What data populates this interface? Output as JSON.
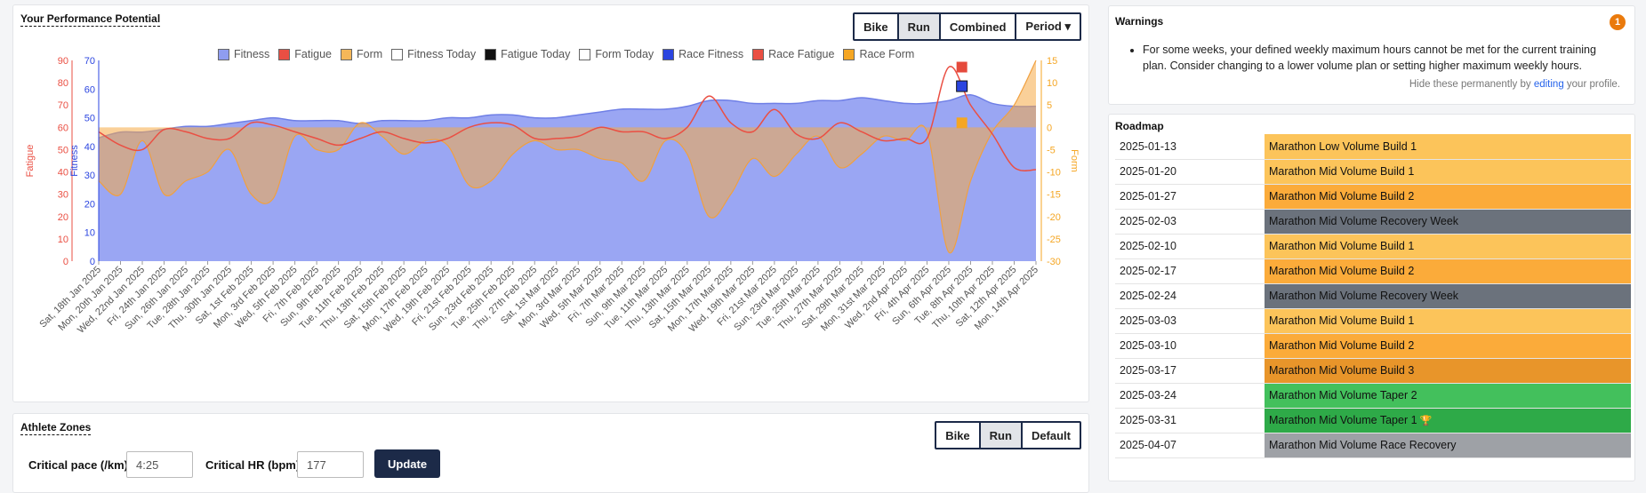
{
  "performance": {
    "title": "Your Performance Potential",
    "buttons": [
      {
        "label": "Bike",
        "active": false
      },
      {
        "label": "Run",
        "active": true
      },
      {
        "label": "Combined",
        "active": false
      },
      {
        "label": "Period ▾",
        "active": false
      }
    ],
    "legend": [
      {
        "label": "Fitness",
        "color": "#8f9df0"
      },
      {
        "label": "Fatigue",
        "color": "#ea4f43"
      },
      {
        "label": "Form",
        "color": "#f5b759"
      },
      {
        "label": "Fitness Today",
        "color": "#ffffff"
      },
      {
        "label": "Fatigue Today",
        "color": "#111111"
      },
      {
        "label": "Form Today",
        "color": "#ffffff"
      },
      {
        "label": "Race Fitness",
        "color": "#2b45e0"
      },
      {
        "label": "Race Fatigue",
        "color": "#ea4f43"
      },
      {
        "label": "Race Form",
        "color": "#f5a623"
      }
    ]
  },
  "chart_data": {
    "type": "area",
    "x": [
      "Sat, 18th Jan 2025",
      "Mon, 20th Jan 2025",
      "Wed, 22nd Jan 2025",
      "Fri, 24th Jan 2025",
      "Sun, 26th Jan 2025",
      "Tue, 28th Jan 2025",
      "Thu, 30th Jan 2025",
      "Sat, 1st Feb 2025",
      "Mon, 3rd Feb 2025",
      "Wed, 5th Feb 2025",
      "Fri, 7th Feb 2025",
      "Sun, 9th Feb 2025",
      "Tue, 11th Feb 2025",
      "Thu, 13th Feb 2025",
      "Sat, 15th Feb 2025",
      "Mon, 17th Feb 2025",
      "Wed, 19th Feb 2025",
      "Fri, 21st Feb 2025",
      "Sun, 23rd Feb 2025",
      "Tue, 25th Feb 2025",
      "Thu, 27th Feb 2025",
      "Sat, 1st Mar 2025",
      "Mon, 3rd Mar 2025",
      "Wed, 5th Mar 2025",
      "Fri, 7th Mar 2025",
      "Sun, 9th Mar 2025",
      "Tue, 11th Mar 2025",
      "Thu, 13th Mar 2025",
      "Sat, 15th Mar 2025",
      "Mon, 17th Mar 2025",
      "Wed, 19th Mar 2025",
      "Fri, 21st Mar 2025",
      "Sun, 23rd Mar 2025",
      "Tue, 25th Mar 2025",
      "Thu, 27th Mar 2025",
      "Sat, 29th Mar 2025",
      "Mon, 31st Mar 2025",
      "Wed, 2nd Apr 2025",
      "Fri, 4th Apr 2025",
      "Sun, 6th Apr 2025",
      "Tue, 8th Apr 2025",
      "Thu, 10th Apr 2025",
      "Sat, 12th Apr 2025",
      "Mon, 14th Apr 2025"
    ],
    "axes": {
      "fatigue": {
        "label": "Fatigue",
        "min": 0,
        "max": 90,
        "ticks": [
          0,
          10,
          20,
          30,
          40,
          50,
          60,
          70,
          80,
          90
        ],
        "color": "#ea4f43"
      },
      "fitness": {
        "label": "Fitness",
        "min": 0,
        "max": 70,
        "ticks": [
          0,
          10,
          20,
          30,
          40,
          50,
          60,
          70
        ],
        "color": "#2b45e0"
      },
      "form": {
        "label": "Form",
        "min": -30,
        "max": 15,
        "ticks": [
          15,
          10,
          5,
          0,
          -5,
          -10,
          -15,
          -20,
          -25,
          -30
        ],
        "color": "#f5a623"
      }
    },
    "series": [
      {
        "name": "Fitness",
        "axis": "fitness",
        "values": [
          43,
          45,
          45,
          46,
          47,
          47,
          48,
          49,
          50,
          49,
          49,
          49,
          48,
          49,
          49,
          49,
          50,
          50,
          51,
          51,
          50,
          50,
          51,
          52,
          53,
          53,
          53,
          54,
          56,
          56,
          55,
          55,
          55,
          56,
          56,
          57,
          56,
          55,
          55,
          56,
          58,
          55,
          54,
          54
        ]
      },
      {
        "name": "Fatigue",
        "axis": "fatigue",
        "values": [
          58,
          52,
          50,
          59,
          58,
          55,
          55,
          62,
          61,
          58,
          55,
          52,
          55,
          58,
          55,
          53,
          55,
          60,
          62,
          61,
          55,
          55,
          56,
          60,
          58,
          58,
          55,
          60,
          74,
          62,
          58,
          68,
          57,
          55,
          62,
          58,
          54,
          55,
          55,
          87,
          70,
          57,
          42,
          41
        ]
      },
      {
        "name": "Form",
        "axis": "form",
        "values": [
          -12,
          -15,
          -3,
          -15,
          -12,
          -10,
          -5,
          -15,
          -16,
          -2,
          -5,
          -5,
          1,
          -2,
          -6,
          -3,
          -4,
          -13,
          -12,
          -6,
          -3,
          -5,
          -5,
          -7,
          -8,
          -12,
          -3,
          -6,
          -20,
          -15,
          -7,
          -11,
          -6,
          -2,
          -9,
          -6,
          -2,
          -3,
          -1,
          -28,
          -12,
          -1,
          5,
          15
        ]
      },
      {
        "name": "Race Fitness",
        "axis": "fitness",
        "values": [
          {
            "x": "Mon, 7th Apr 2025",
            "y": 61
          }
        ]
      },
      {
        "name": "Race Fatigue",
        "axis": "fatigue",
        "values": [
          {
            "x": "Mon, 7th Apr 2025",
            "y": 87
          }
        ]
      },
      {
        "name": "Race Form",
        "axis": "form",
        "values": [
          {
            "x": "Mon, 7th Apr 2025",
            "y": 1
          }
        ]
      }
    ]
  },
  "zones": {
    "title": "Athlete Zones",
    "buttons": [
      {
        "label": "Bike",
        "active": false
      },
      {
        "label": "Run",
        "active": true
      },
      {
        "label": "Default",
        "active": false
      }
    ],
    "pace_label": "Critical pace (/km)",
    "pace_value": "4:25",
    "hr_label": "Critical HR (bpm)",
    "hr_value": "177",
    "update_label": "Update"
  },
  "warnings": {
    "title": "Warnings",
    "count": "1",
    "items": [
      "For some weeks, your defined weekly maximum hours cannot be met for the current training plan. Consider changing to a lower volume plan or setting higher maximum weekly hours."
    ],
    "hide_prefix": "Hide these permanently by ",
    "hide_link": "editing",
    "hide_suffix": " your profile."
  },
  "roadmap": {
    "title": "Roadmap",
    "rows": [
      {
        "date": "2025-01-13",
        "plan": "Marathon Low Volume Build 1",
        "color": "#fcc45a"
      },
      {
        "date": "2025-01-20",
        "plan": "Marathon Mid Volume Build 1",
        "color": "#fcc45a"
      },
      {
        "date": "2025-01-27",
        "plan": "Marathon Mid Volume Build 2",
        "color": "#fbab3a"
      },
      {
        "date": "2025-02-03",
        "plan": "Marathon Mid Volume Recovery Week",
        "color": "#6b727c"
      },
      {
        "date": "2025-02-10",
        "plan": "Marathon Mid Volume Build 1",
        "color": "#fcc45a"
      },
      {
        "date": "2025-02-17",
        "plan": "Marathon Mid Volume Build 2",
        "color": "#fbab3a"
      },
      {
        "date": "2025-02-24",
        "plan": "Marathon Mid Volume Recovery Week",
        "color": "#6b727c"
      },
      {
        "date": "2025-03-03",
        "plan": "Marathon Mid Volume Build 1",
        "color": "#fcc45a"
      },
      {
        "date": "2025-03-10",
        "plan": "Marathon Mid Volume Build 2",
        "color": "#fbab3a"
      },
      {
        "date": "2025-03-17",
        "plan": "Marathon Mid Volume Build 3",
        "color": "#e8952a"
      },
      {
        "date": "2025-03-24",
        "plan": "Marathon Mid Volume Taper 2",
        "color": "#43c05c"
      },
      {
        "date": "2025-03-31",
        "plan": "Marathon Mid Volume Taper 1",
        "color": "#2eaa48",
        "icon": "trophy-icon"
      },
      {
        "date": "2025-04-07",
        "plan": "Marathon Mid Volume Race Recovery",
        "color": "#9ea1a6"
      }
    ]
  }
}
